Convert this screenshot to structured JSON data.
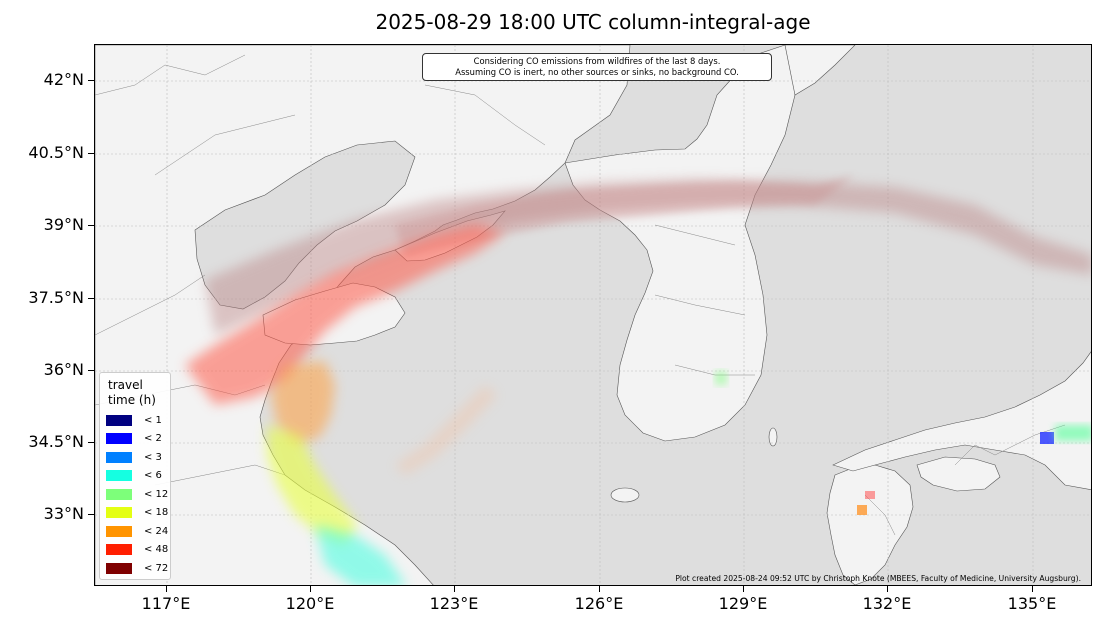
{
  "title": "2025-08-29 18:00 UTC column-integral-age",
  "notice": {
    "line1": "Considering CO emissions from wildfires of the last 8 days.",
    "line2": "Assuming CO is inert, no other sources or sinks, no background CO."
  },
  "lat_labels": [
    "42°N",
    "40.5°N",
    "39°N",
    "37.5°N",
    "36°N",
    "34.5°N",
    "33°N"
  ],
  "lon_labels": [
    "117°E",
    "120°E",
    "123°E",
    "126°E",
    "129°E",
    "132°E",
    "135°E"
  ],
  "legend": {
    "title_line1": "travel",
    "title_line2": "time (h)",
    "entries": [
      {
        "label": "<  1",
        "color": "#000080"
      },
      {
        "label": "<  2",
        "color": "#0000ff"
      },
      {
        "label": "<  3",
        "color": "#0080ff"
      },
      {
        "label": "<  6",
        "color": "#15ffe1"
      },
      {
        "label": "< 12",
        "color": "#7dff7a"
      },
      {
        "label": "< 18",
        "color": "#e4ff13"
      },
      {
        "label": "< 24",
        "color": "#ff9400"
      },
      {
        "label": "< 48",
        "color": "#ff1e00"
      },
      {
        "label": "< 72",
        "color": "#7f0000"
      }
    ]
  },
  "credit": "Plot created 2025-08-24 09:52 UTC by Christoph Knote (MBEES, Faculty of Medicine, University Augsburg)."
}
